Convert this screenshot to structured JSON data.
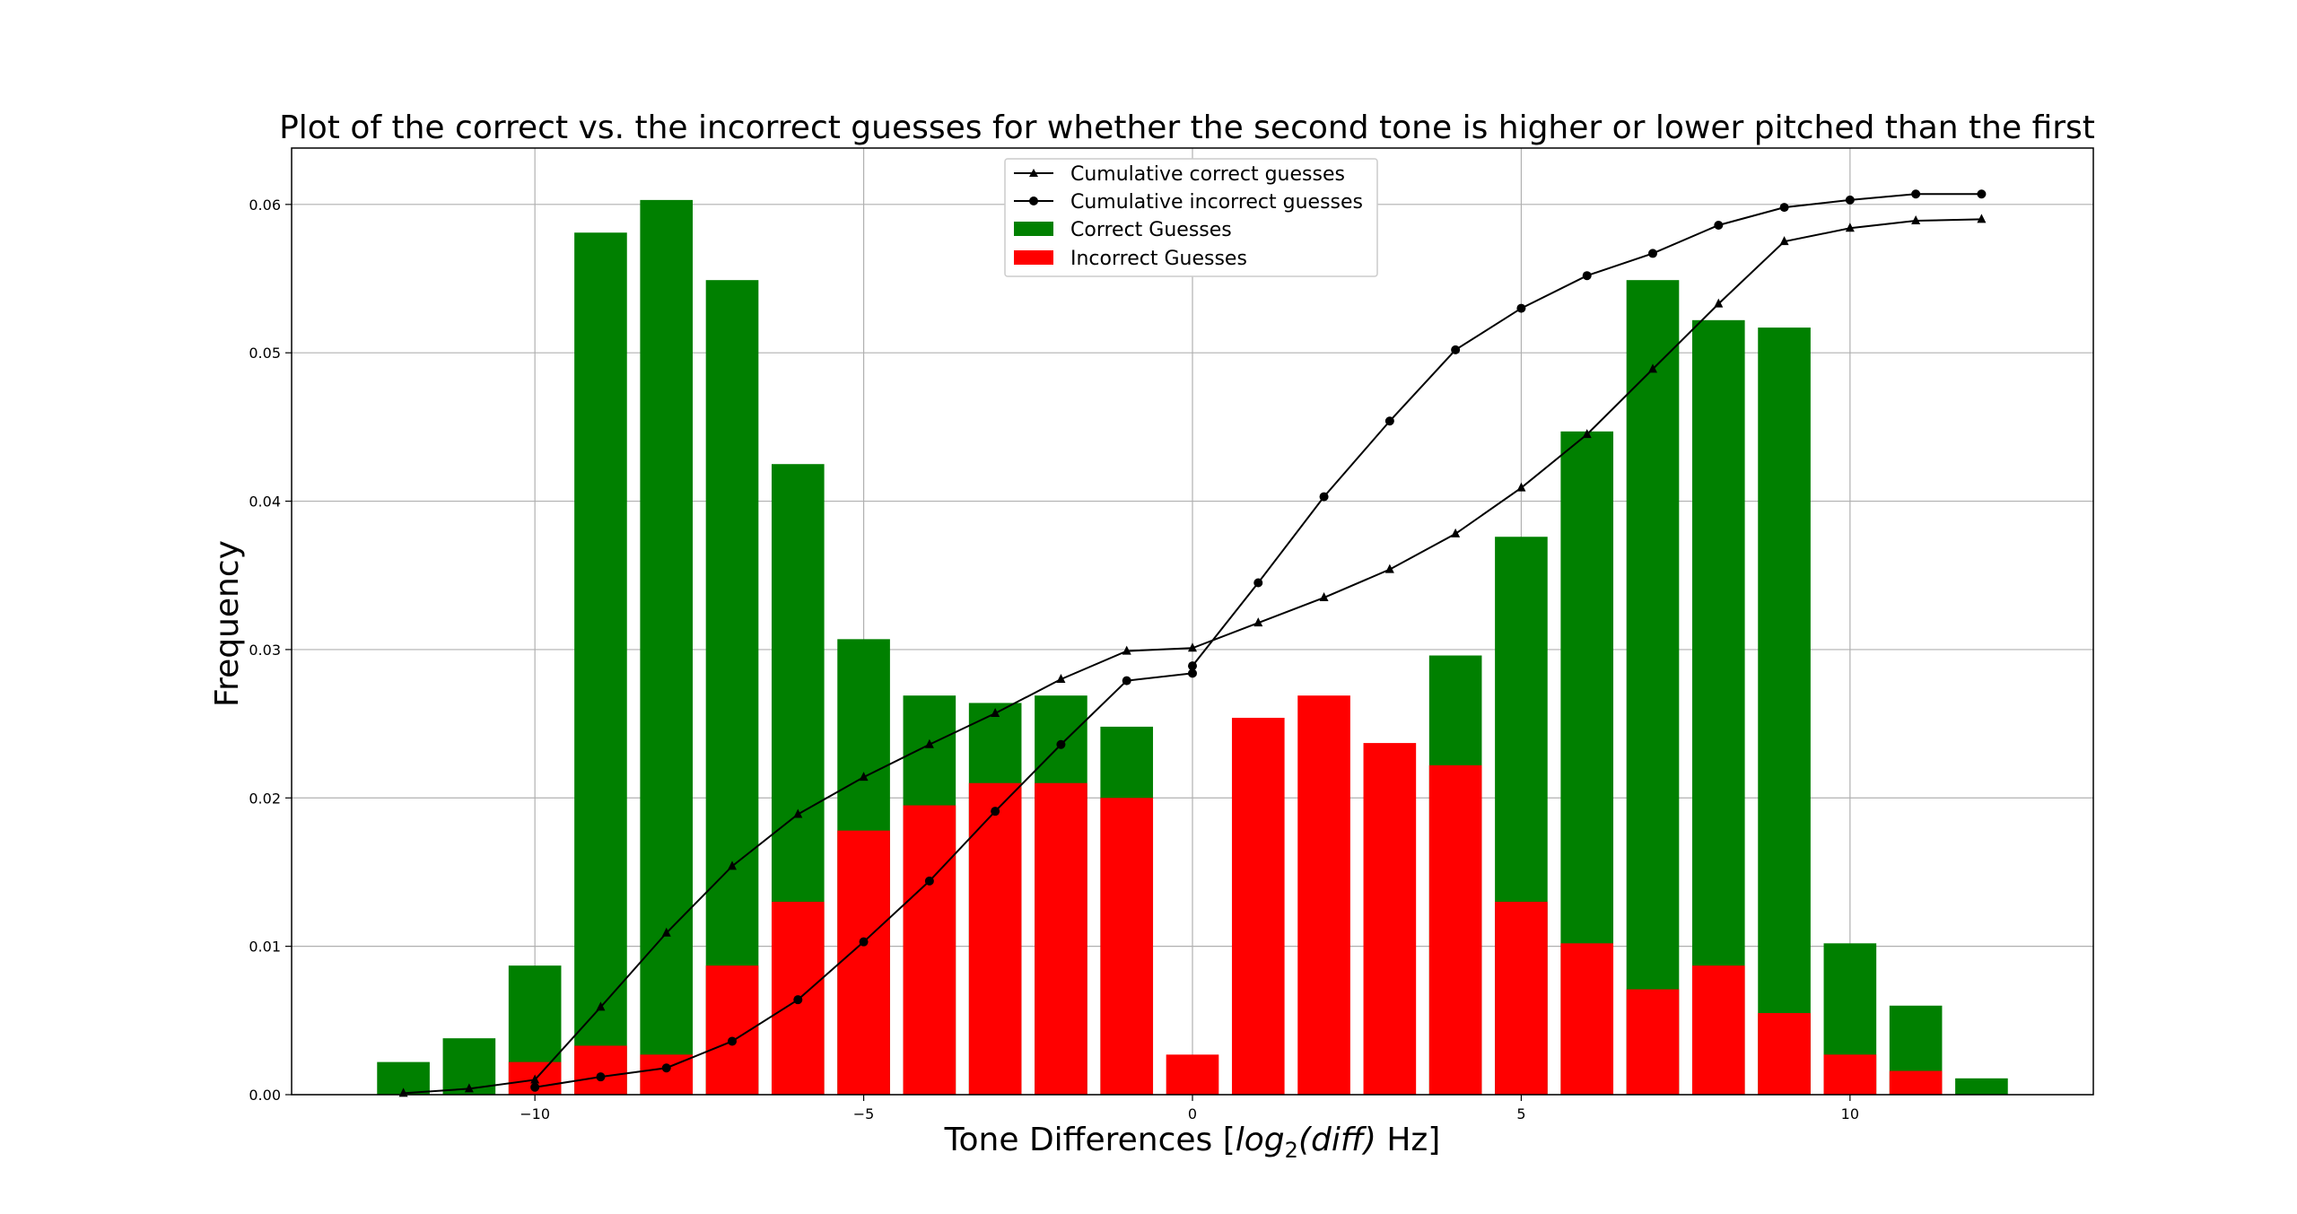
{
  "chart_data": {
    "type": "bar",
    "title": "Plot of the correct vs. the incorrect guesses for whether the second tone is higher or lower pitched than the first",
    "xlabel": {
      "prefix": "Tone Differences [",
      "italic": "log",
      "sub": "2",
      "italic2": "(diff)",
      "suffix": " Hz]"
    },
    "ylabel": "Frequency",
    "xlim": [
      -13.7,
      13.7
    ],
    "ylim": [
      0,
      0.0638
    ],
    "xticks": [
      -10,
      -5,
      0,
      5,
      10
    ],
    "xtick_labels": [
      "−10",
      "−5",
      "0",
      "5",
      "10"
    ],
    "yticks": [
      0,
      0.01,
      0.02,
      0.03,
      0.04,
      0.05,
      0.06
    ],
    "ytick_labels": [
      "0.00",
      "0.01",
      "0.02",
      "0.03",
      "0.04",
      "0.05",
      "0.06"
    ],
    "grid": true,
    "legend_position": "top-center",
    "bar_width": 0.8,
    "x": [
      -12,
      -11,
      -10,
      -9,
      -8,
      -7,
      -6,
      -5,
      -4,
      -3,
      -2,
      -1,
      0,
      1,
      2,
      3,
      4,
      5,
      6,
      7,
      8,
      9,
      10,
      11,
      12
    ],
    "series": [
      {
        "name": "Correct Guesses",
        "kind": "bar",
        "color": "#008000",
        "values": [
          0.0022,
          0.0038,
          0.0087,
          0.0581,
          0.0603,
          0.0549,
          0.0425,
          0.0307,
          0.0269,
          0.0264,
          0.0269,
          0.0248,
          0,
          0,
          0,
          0,
          0.0296,
          0.0376,
          0.0447,
          0.0549,
          0.0522,
          0.0517,
          0.0102,
          0.006,
          0.0011
        ]
      },
      {
        "name": "Incorrect Guesses",
        "kind": "bar",
        "color": "#ff0000",
        "values": [
          0,
          0,
          0.0022,
          0.0033,
          0.0027,
          0.0087,
          0.013,
          0.0178,
          0.0195,
          0.021,
          0.021,
          0.02,
          0.0027,
          0.0254,
          0.0269,
          0.0237,
          0.0222,
          0.013,
          0.0102,
          0.0071,
          0.0087,
          0.0055,
          0.0027,
          0.0016,
          0
        ]
      },
      {
        "name": "Cumulative correct guesses",
        "kind": "line",
        "marker": "triangle",
        "color": "#000000",
        "x": [
          -12,
          -11,
          -10,
          -9,
          -8,
          -7,
          -6,
          -5,
          -4,
          -3,
          -2,
          -1,
          0,
          1,
          2,
          3,
          4,
          5,
          6,
          7,
          8,
          9,
          10,
          11,
          12
        ],
        "values": [
          0.0001,
          0.0004,
          0.001,
          0.0059,
          0.0109,
          0.0154,
          0.0189,
          0.0214,
          0.0236,
          0.0257,
          0.028,
          0.0299,
          0.0301,
          0.0318,
          0.0335,
          0.0354,
          0.0378,
          0.0409,
          0.0445,
          0.0489,
          0.0533,
          0.0575,
          0.0584,
          0.0589,
          0.059
        ]
      },
      {
        "name": "Cumulative incorrect guesses",
        "kind": "line",
        "marker": "circle",
        "color": "#000000",
        "x": [
          -10,
          -9,
          -8,
          -7,
          -6,
          -5,
          -4,
          -3,
          -2,
          -1,
          0,
          0,
          1,
          2,
          3,
          4,
          5,
          6,
          7,
          8,
          9,
          10,
          11,
          12
        ],
        "values": [
          0.0005,
          0.0012,
          0.0018,
          0.0036,
          0.0064,
          0.0103,
          0.0144,
          0.0191,
          0.0236,
          0.0279,
          0.0284,
          0.0289,
          0.0345,
          0.0403,
          0.0454,
          0.0502,
          0.053,
          0.0552,
          0.0567,
          0.0586,
          0.0598,
          0.0603,
          0.0607,
          0.0607
        ]
      }
    ]
  }
}
